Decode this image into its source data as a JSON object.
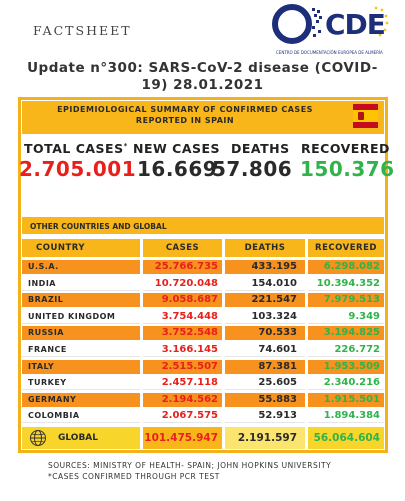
{
  "header": {
    "factsheet": "FACTSHEET",
    "logo_text": "CDE",
    "logo_subtitle": "CENTRO DE DOCUMENTACIÓN EUROPEA DE ALMERÍA",
    "title": "Update n°300: SARS-CoV-2 disease (COVID-19) 28.01.2021"
  },
  "spain": {
    "title": "EPIDEMIOLOGICAL SUMMARY OF CONFIRMED CASES REPORTED IN SPAIN",
    "total_cases_label": "TOTAL CASES",
    "total_cases_mark": "*",
    "new_cases_label": "NEW CASES",
    "deaths_label": "DEATHS",
    "recovered_label": "RECOVERED",
    "total_cases": "2.705.001",
    "new_cases": "16.669",
    "deaths": "57.806",
    "recovered": "150.376",
    "colors": {
      "total": "#e8201c",
      "new": "#2a2a2a",
      "deaths": "#2a2a2a",
      "recovered": "#2fb34a"
    }
  },
  "table": {
    "section_title": "OTHER COUNTRIES AND GLOBAL",
    "headers": {
      "country": "COUNTRY",
      "cases": "CASES",
      "deaths": "DEATHS",
      "recovered": "RECOVERED"
    },
    "rows": [
      {
        "country": "U.S.A.",
        "cases": "25.766.735",
        "deaths": "433.195",
        "recovered": "6.298.082"
      },
      {
        "country": "INDIA",
        "cases": "10.720.048",
        "deaths": "154.010",
        "recovered": "10.394.352"
      },
      {
        "country": "BRAZIL",
        "cases": "9.058.687",
        "deaths": "221.547",
        "recovered": "7.979.513"
      },
      {
        "country": "UNITED KINGDOM",
        "cases": "3.754.448",
        "deaths": "103.324",
        "recovered": "9.349"
      },
      {
        "country": "RUSSIA",
        "cases": "3.752.548",
        "deaths": "70.533",
        "recovered": "3.194.825"
      },
      {
        "country": "FRANCE",
        "cases": "3.166.145",
        "deaths": "74.601",
        "recovered": "226.772"
      },
      {
        "country": "ITALY",
        "cases": "2.515.507",
        "deaths": "87.381",
        "recovered": "1.953.509"
      },
      {
        "country": "TURKEY",
        "cases": "2.457.118",
        "deaths": "25.605",
        "recovered": "2.340.216"
      },
      {
        "country": "GERMANY",
        "cases": "2.194.562",
        "deaths": "55.883",
        "recovered": "1.915.501"
      },
      {
        "country": "COLOMBIA",
        "cases": "2.067.575",
        "deaths": "52.913",
        "recovered": "1.894.384"
      }
    ],
    "global": {
      "label": "GLOBAL",
      "cases": "101.475.947",
      "deaths": "2.191.597",
      "recovered": "56.064.604"
    }
  },
  "footer": {
    "sources": "SOURCES: MINISTRY OF HEALTH- SPAIN; JOHN HOPKINS UNIVERSITY",
    "note": "*CASES CONFIRMED THROUGH PCR TEST"
  }
}
